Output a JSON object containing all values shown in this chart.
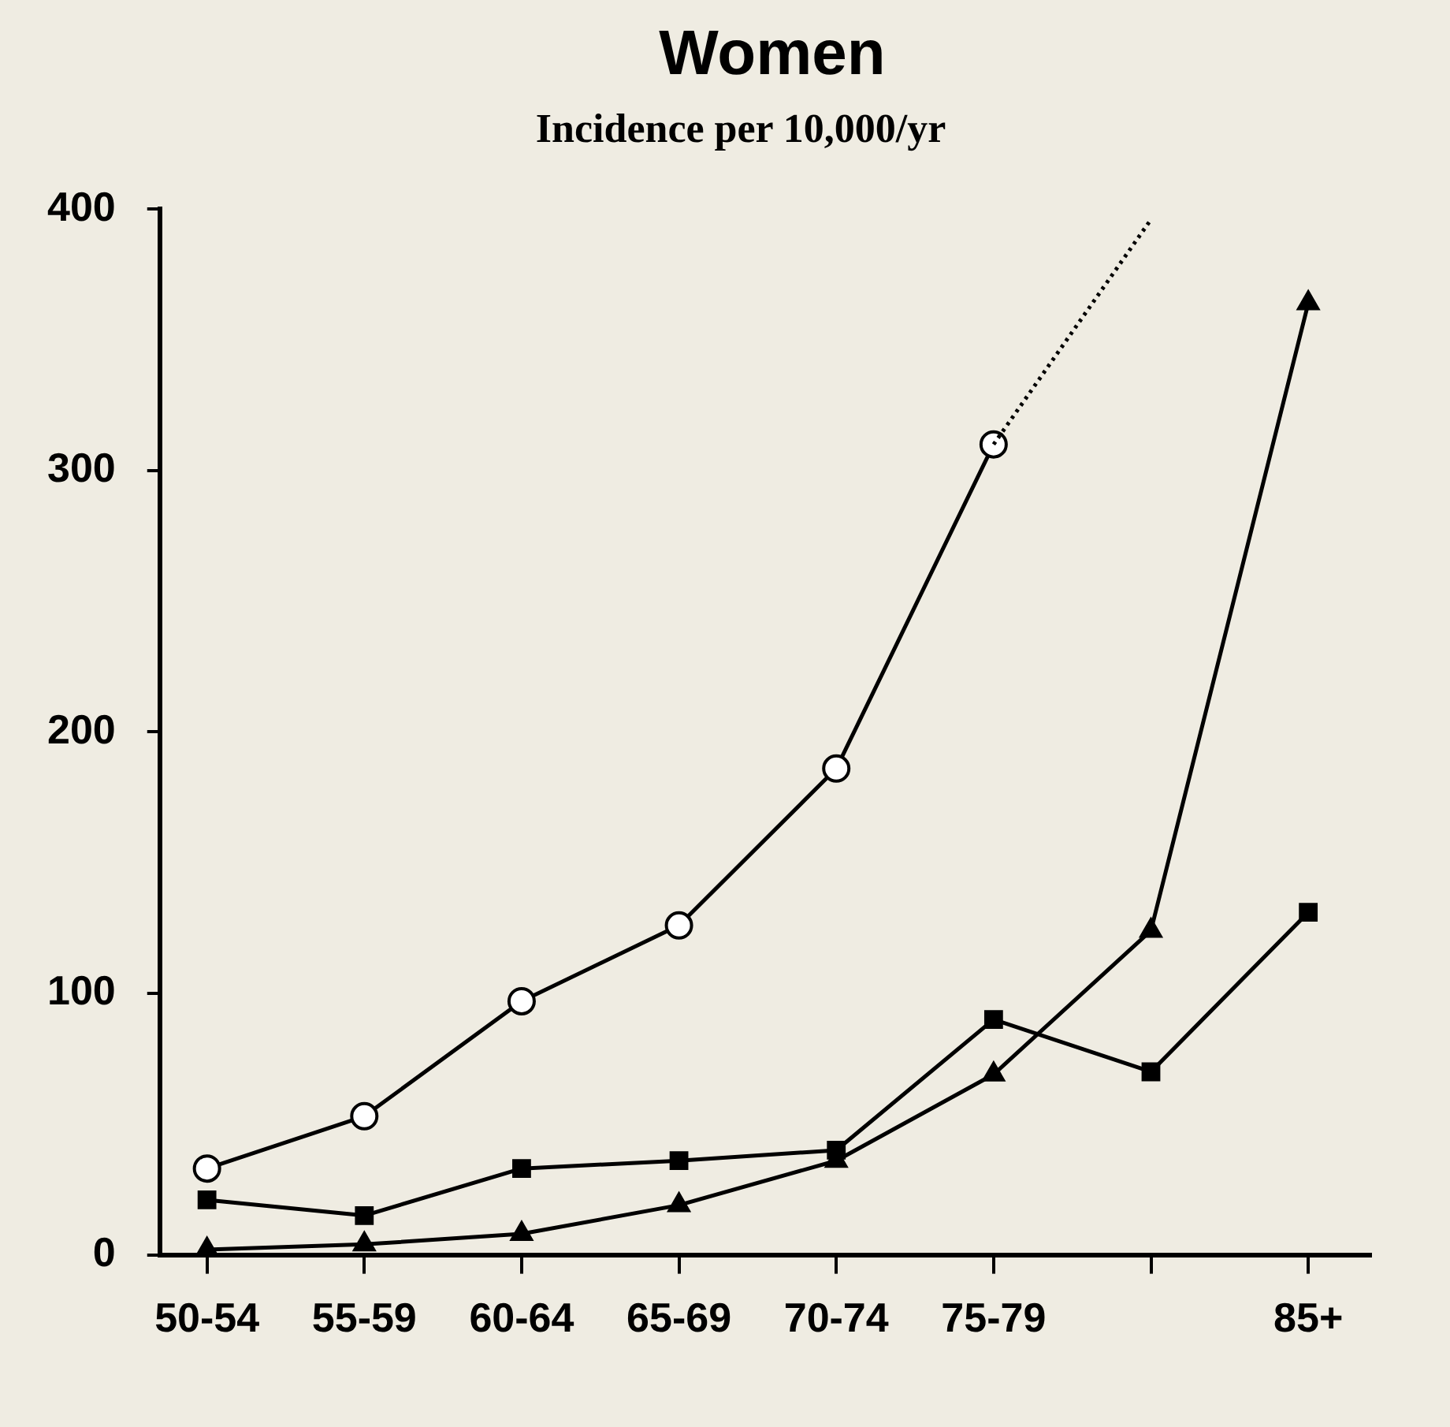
{
  "chart_data": {
    "type": "line",
    "title": "Women",
    "subtitle": "Incidence per 10,000/yr",
    "categories": [
      "50-54",
      "55-59",
      "60-64",
      "65-69",
      "70-74",
      "75-79",
      null,
      "85+"
    ],
    "ylim": [
      0,
      400
    ],
    "yticks": [
      0,
      100,
      200,
      300,
      400
    ],
    "grid": false,
    "legend": false,
    "series": [
      {
        "color": "#000000",
        "marker": "circle",
        "values": [
          33,
          53,
          97,
          126,
          186,
          310,
          null,
          null
        ]
      },
      {
        "color": "#000000",
        "type": "line",
        "line_style": "dotted",
        "values": [
          null,
          null,
          null,
          null,
          null,
          310,
          396,
          null
        ]
      },
      {
        "color": "#000000",
        "marker": "square",
        "values": [
          21,
          15,
          33,
          36,
          40,
          90,
          70,
          131
        ]
      },
      {
        "color": "#000000",
        "marker": "triangle",
        "values": [
          2,
          4,
          8,
          19,
          36,
          69,
          124,
          364
        ]
      }
    ]
  }
}
